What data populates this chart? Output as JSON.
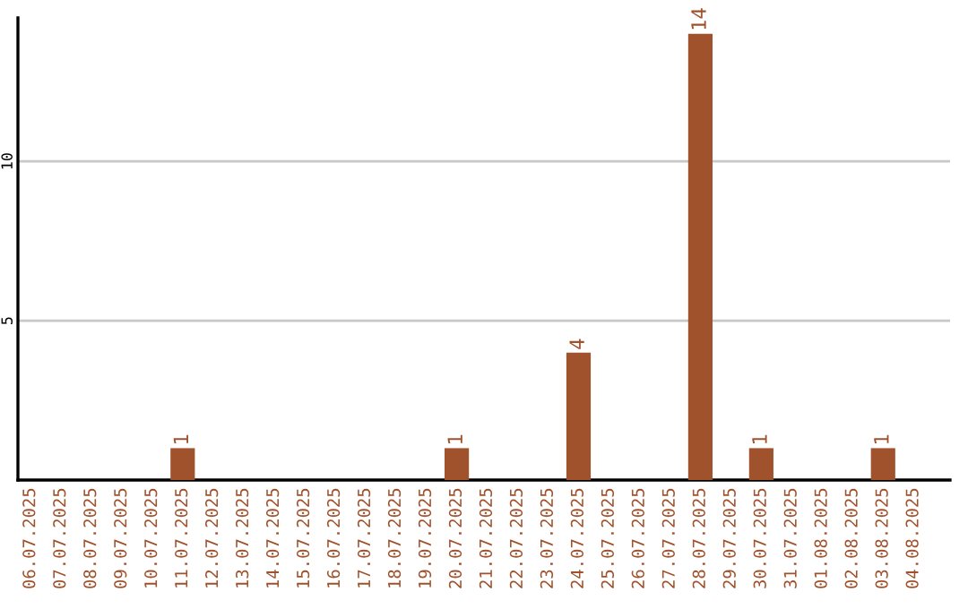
{
  "chart_data": {
    "type": "bar",
    "categories": [
      "06.07.2025",
      "07.07.2025",
      "08.07.2025",
      "09.07.2025",
      "10.07.2025",
      "11.07.2025",
      "12.07.2025",
      "13.07.2025",
      "14.07.2025",
      "15.07.2025",
      "16.07.2025",
      "17.07.2025",
      "18.07.2025",
      "19.07.2025",
      "20.07.2025",
      "21.07.2025",
      "22.07.2025",
      "23.07.2025",
      "24.07.2025",
      "25.07.2025",
      "26.07.2025",
      "27.07.2025",
      "28.07.2025",
      "29.07.2025",
      "30.07.2025",
      "31.07.2025",
      "01.08.2025",
      "02.08.2025",
      "03.08.2025",
      "04.08.2025"
    ],
    "values": [
      0,
      0,
      0,
      0,
      0,
      1,
      0,
      0,
      0,
      0,
      0,
      0,
      0,
      0,
      1,
      0,
      0,
      0,
      4,
      0,
      0,
      0,
      14,
      0,
      1,
      0,
      0,
      0,
      1,
      0
    ],
    "value_labels": [
      null,
      null,
      null,
      null,
      null,
      "1",
      null,
      null,
      null,
      null,
      null,
      null,
      null,
      null,
      "1",
      null,
      null,
      null,
      "4",
      null,
      null,
      null,
      "14",
      null,
      "1",
      null,
      null,
      null,
      "1",
      null
    ],
    "color": "#a0522d",
    "ylim": [
      0,
      14.5
    ],
    "yticks": [
      5,
      10
    ],
    "grid": "y",
    "legend": false
  }
}
